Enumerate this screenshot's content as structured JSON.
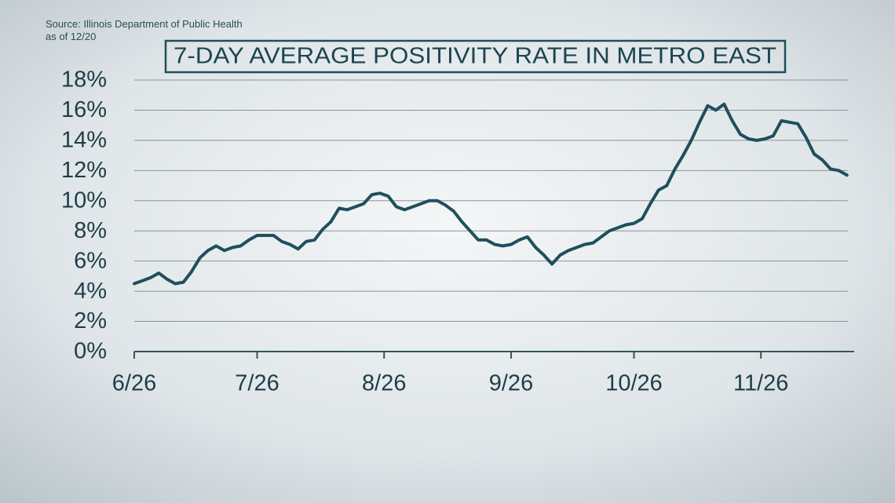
{
  "chart_data": {
    "type": "line",
    "source": "Source: Illinois Department of Public Health",
    "asof": "as of 12/20",
    "title": "7-DAY AVERAGE POSITIVITY RATE IN METRO EAST",
    "x": [
      0,
      2,
      4,
      6,
      8,
      10,
      12,
      14,
      16,
      18,
      20,
      22,
      24,
      26,
      28,
      30,
      32,
      34,
      36,
      38,
      40,
      42,
      44,
      46,
      48,
      50,
      52,
      54,
      56,
      58,
      60,
      62,
      64,
      66,
      68,
      70,
      72,
      74,
      76,
      78,
      80,
      82,
      84,
      86,
      88,
      90,
      92,
      94,
      96,
      98,
      100,
      102,
      104,
      106,
      108,
      110,
      112,
      114,
      116,
      118,
      120,
      122,
      124,
      126,
      128,
      130,
      132,
      134,
      136,
      138,
      140,
      142,
      144,
      146,
      148,
      150,
      152,
      154,
      156,
      158,
      160,
      162,
      164,
      166,
      168,
      170,
      172,
      174
    ],
    "series": [
      {
        "color": "#1f4f5c",
        "values": [
          4.5,
          4.7,
          4.9,
          5.2,
          4.8,
          4.5,
          4.6,
          5.3,
          6.2,
          6.7,
          7.0,
          6.7,
          6.9,
          7.0,
          7.4,
          7.7,
          7.7,
          7.7,
          7.3,
          7.1,
          6.8,
          7.3,
          7.4,
          8.1,
          8.6,
          9.5,
          9.4,
          9.6,
          9.8,
          10.4,
          10.5,
          10.3,
          9.6,
          9.4,
          9.6,
          9.8,
          10.0,
          10.0,
          9.7,
          9.3,
          8.6,
          8.0,
          7.4,
          7.4,
          7.1,
          7.0,
          7.1,
          7.4,
          7.6,
          6.9,
          6.4,
          5.8,
          6.4,
          6.7,
          6.9,
          7.1,
          7.2,
          7.6,
          8.0,
          8.2,
          8.4,
          8.5,
          8.8,
          9.8,
          10.7,
          11.0,
          12.1,
          13.0,
          14.0,
          15.2,
          16.3,
          16.0,
          16.4,
          15.3,
          14.4,
          14.1,
          14.0,
          14.1,
          14.3,
          15.3,
          15.2,
          15.1,
          14.2,
          13.1,
          12.7,
          12.1,
          12.0,
          11.7
        ]
      }
    ],
    "xlim": [
      0,
      175
    ],
    "xticks": [
      {
        "value": 0,
        "label": "6/26"
      },
      {
        "value": 30,
        "label": "7/26"
      },
      {
        "value": 61,
        "label": "8/26"
      },
      {
        "value": 92,
        "label": "9/26"
      },
      {
        "value": 122,
        "label": "10/26"
      },
      {
        "value": 153,
        "label": "11/26"
      }
    ],
    "ylim": [
      0,
      18
    ],
    "yticks": [
      {
        "value": 0,
        "label": "0%"
      },
      {
        "value": 2,
        "label": "2%"
      },
      {
        "value": 4,
        "label": "4%"
      },
      {
        "value": 6,
        "label": "6%"
      },
      {
        "value": 8,
        "label": "8%"
      },
      {
        "value": 10,
        "label": "10%"
      },
      {
        "value": 12,
        "label": "12%"
      },
      {
        "value": 14,
        "label": "14%"
      },
      {
        "value": 16,
        "label": "16%"
      },
      {
        "value": 18,
        "label": "18%"
      }
    ],
    "grid": true
  }
}
